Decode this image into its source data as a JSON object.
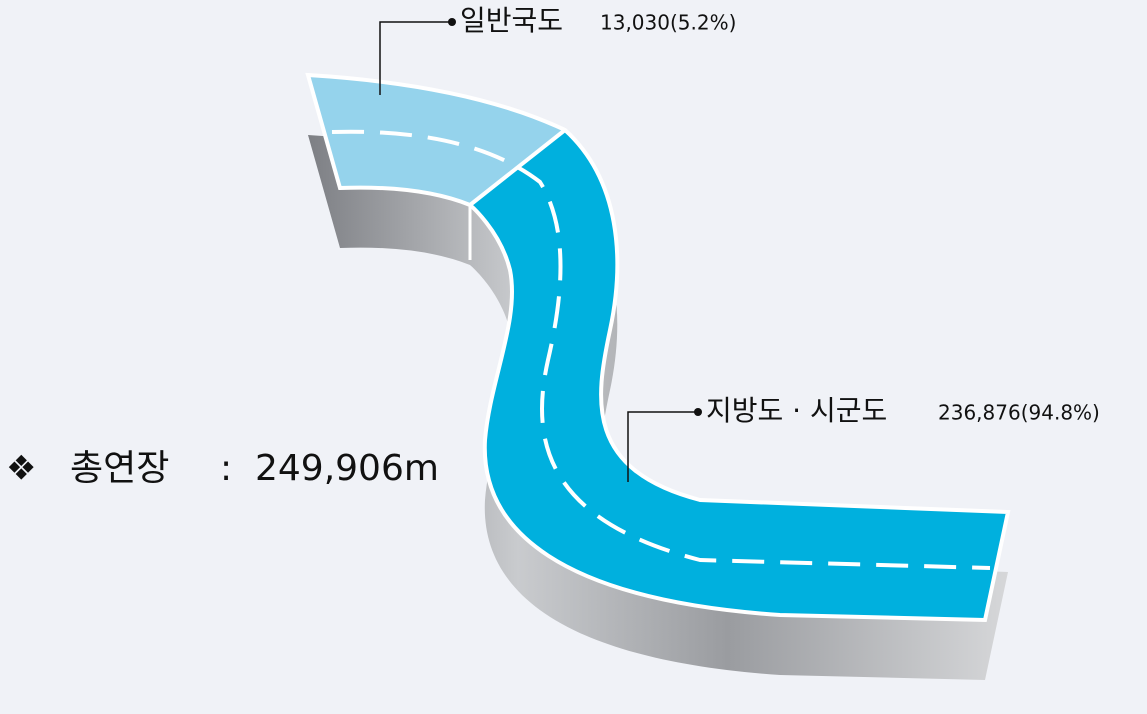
{
  "segments": [
    {
      "name": "일반국도",
      "detail": "13,030(5.2%)"
    },
    {
      "name": "지방도 · 시군도",
      "detail": "236,876(94.8%)"
    }
  ],
  "total": {
    "bullet": "❖",
    "label": "총연장",
    "separator": ":",
    "value": "249,906m"
  }
}
